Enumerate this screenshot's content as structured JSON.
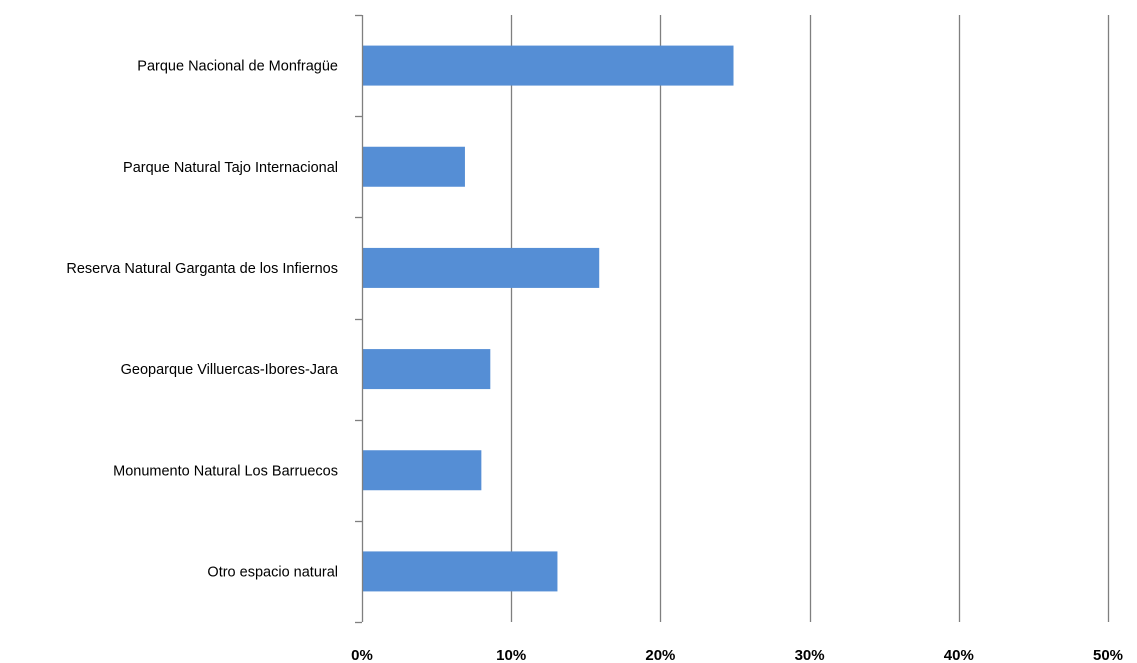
{
  "chart_data": {
    "type": "bar",
    "orientation": "horizontal",
    "categories": [
      "Parque Nacional de Monfragüe",
      "Parque Natural Tajo Internacional",
      "Reserva Natural Garganta de los Infiernos",
      "Geoparque Villuercas-Ibores-Jara",
      "Monumento Natural Los Barruecos",
      "Otro espacio natural"
    ],
    "values": [
      0.249,
      0.069,
      0.159,
      0.086,
      0.08,
      0.131
    ],
    "xlim": [
      0,
      0.5
    ],
    "xticks": [
      {
        "value": 0,
        "label": "0%"
      },
      {
        "value": 0.1,
        "label": "10%"
      },
      {
        "value": 0.2,
        "label": "20%"
      },
      {
        "value": 0.3,
        "label": "30%"
      },
      {
        "value": 0.4,
        "label": "40%"
      },
      {
        "value": 0.5,
        "label": "50%"
      }
    ],
    "grid": "vertical",
    "legend": "none",
    "colors": {
      "bar": "#558ed5",
      "grid": "#7f7f7f",
      "axis": "#7f7f7f"
    }
  }
}
